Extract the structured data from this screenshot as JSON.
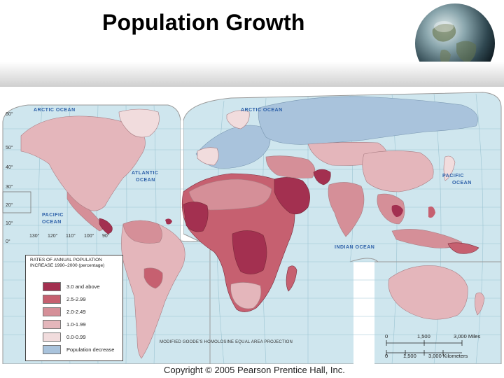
{
  "slide": {
    "title": "Population Growth",
    "copyright": "Copyright © 2005 Pearson Prentice Hall, Inc."
  },
  "map": {
    "projection": "MODIFIED GOODE'S HOMOLOSINE EQUAL AREA PROJECTION",
    "ocean_labels": {
      "arctic_left": "ARCTIC OCEAN",
      "arctic_right": "ARCTIC OCEAN",
      "atlantic": "ATLANTIC OCEAN",
      "atlantic_line1": "ATLANTIC",
      "atlantic_line2": "OCEAN",
      "pacific_left_line1": "PACIFIC",
      "pacific_left_line2": "OCEAN",
      "pacific_right_line1": "PACIFIC",
      "pacific_right_line2": "OCEAN",
      "indian": "INDIAN OCEAN"
    },
    "latitude_labels": [
      "60°",
      "50°",
      "40°",
      "30°",
      "20°",
      "10°",
      "0°"
    ],
    "longitude_labels": [
      "130°",
      "120°",
      "110°",
      "100°",
      "90°"
    ],
    "legend": {
      "title": "RATES OF ANNUAL POPULATION INCREASE 1990–2000 (percentage)",
      "entries": [
        {
          "label": "3.0 and above",
          "color": "#a33050"
        },
        {
          "label": "2.5-2.99",
          "color": "#c66070"
        },
        {
          "label": "2.0-2.49",
          "color": "#d58f98"
        },
        {
          "label": "1.0-1.99",
          "color": "#e4b6bb"
        },
        {
          "label": "0.0-0.99",
          "color": "#f1dcdd"
        },
        {
          "label": "Population decrease",
          "color": "#a9c3dc"
        }
      ]
    },
    "scale_bar": {
      "miles_start": "0",
      "miles_mid": "1,500",
      "miles_end": "3,000 Miles",
      "km_start": "0",
      "km_mid": "1,500",
      "km_end": "3,000 Kilometers"
    },
    "colors": {
      "ocean": "#cfe6ee",
      "grid": "#9cc4d2",
      "highest": "#a33050",
      "high": "#c66070",
      "medium": "#d58f98",
      "low": "#e4b6bb",
      "lowest": "#f1dcdd",
      "decrease": "#a9c3dc"
    }
  }
}
